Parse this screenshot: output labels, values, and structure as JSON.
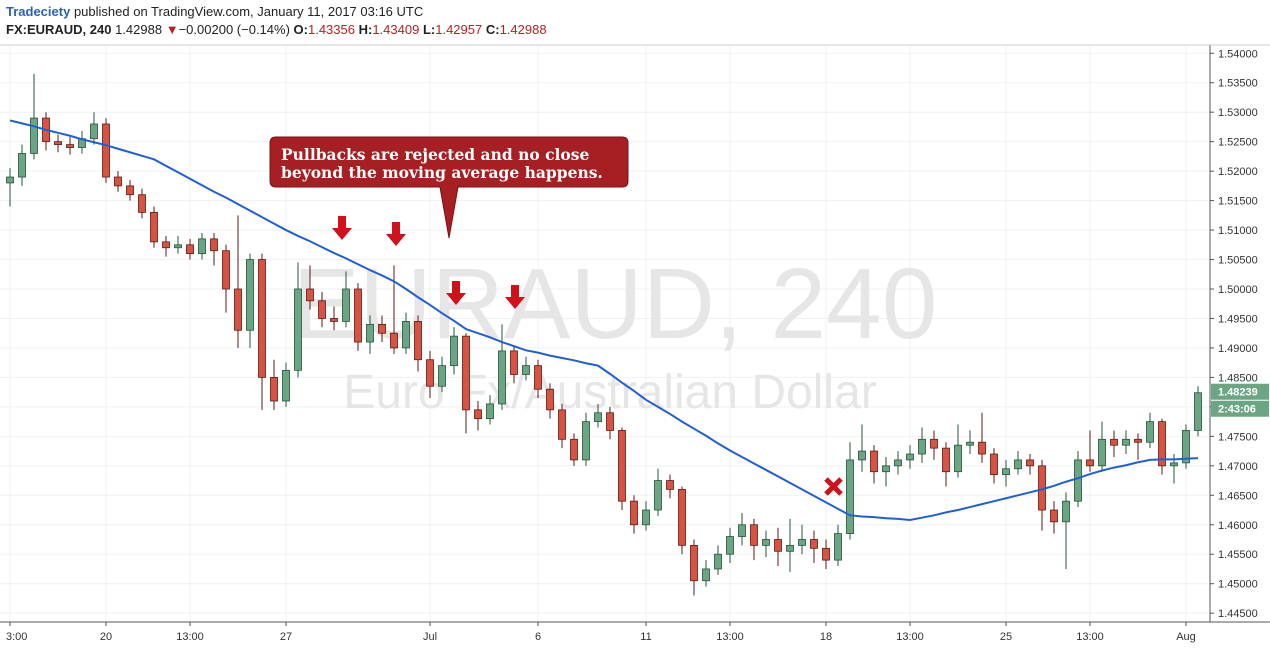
{
  "header": {
    "publisher": "Tradeciety",
    "published": "published on TradingView.com, January 11, 2017 03:16 UTC",
    "symbol": "FX:EURAUD, 240",
    "price": "1.42988",
    "change": "−0.00200 (−0.14%)",
    "open_label": "O:",
    "open": "1.43356",
    "high_label": "H:",
    "high": "1.43409",
    "low_label": "L:",
    "low": "1.42957",
    "close_label": "C:",
    "close": "1.42988"
  },
  "chart_data": {
    "type": "candlestick",
    "watermark": "EURAUD, 240",
    "watermark_subtitle": "Euro Fx/Australian Dollar",
    "annotation": [
      "Pullbacks are rejected and no close",
      "beyond the moving average happens."
    ],
    "last_price_label": "1.48239",
    "countdown": "2:43:06",
    "up_color": "#6ba583",
    "down_color": "#d75442",
    "categories": [
      "3:00",
      null,
      null,
      null,
      null,
      null,
      null,
      null,
      "20",
      null,
      null,
      null,
      null,
      null,
      null,
      "13:00",
      null,
      null,
      null,
      null,
      null,
      null,
      null,
      "27",
      null,
      null,
      null,
      null,
      null,
      null,
      null,
      null,
      null,
      null,
      null,
      "Jul",
      null,
      null,
      null,
      null,
      null,
      null,
      null,
      null,
      "6",
      null,
      null,
      null,
      null,
      null,
      null,
      null,
      null,
      "11",
      null,
      null,
      null,
      null,
      null,
      null,
      "13:00",
      null,
      null,
      null,
      null,
      null,
      null,
      null,
      "18",
      null,
      null,
      null,
      null,
      null,
      null,
      "13:00",
      null,
      null,
      null,
      null,
      null,
      null,
      null,
      "25",
      null,
      null,
      null,
      null,
      null,
      null,
      "13:00",
      null,
      null,
      null,
      null,
      null,
      null,
      null,
      "Aug",
      null
    ],
    "open": [
      1.518,
      1.519,
      1.523,
      1.529,
      1.525,
      1.5245,
      1.524,
      1.5255,
      1.528,
      1.519,
      1.5175,
      1.516,
      1.513,
      1.508,
      1.507,
      1.5075,
      1.506,
      1.5085,
      1.5065,
      1.5,
      1.493,
      1.505,
      1.485,
      1.481,
      1.4862,
      1.5,
      1.498,
      1.495,
      1.4945,
      1.5,
      1.491,
      1.494,
      1.4925,
      1.49,
      1.4945,
      1.488,
      1.4835,
      1.487,
      1.492,
      1.4795,
      1.478,
      1.4805,
      1.4895,
      1.4855,
      1.487,
      1.483,
      1.4795,
      1.4745,
      1.471,
      1.4775,
      1.479,
      1.476,
      1.464,
      1.46,
      1.4625,
      1.4675,
      1.466,
      1.4565,
      1.4505,
      1.4525,
      1.455,
      1.458,
      1.46,
      1.4565,
      1.4575,
      1.4555,
      1.4565,
      1.4575,
      1.456,
      1.454,
      1.4585,
      1.471,
      1.4725,
      1.469,
      1.47,
      1.471,
      1.472,
      1.4745,
      1.473,
      1.469,
      1.4735,
      1.474,
      1.472,
      1.4685,
      1.4695,
      1.471,
      1.47,
      1.4625,
      1.4605,
      1.464,
      1.471,
      1.47,
      1.4745,
      1.4735,
      1.4745,
      1.474,
      1.4775,
      1.47,
      1.4705,
      1.476
    ],
    "high": [
      1.5205,
      1.5245,
      1.5365,
      1.53,
      1.5262,
      1.5258,
      1.5268,
      1.53,
      1.529,
      1.52,
      1.5185,
      1.517,
      1.514,
      1.509,
      1.509,
      1.5085,
      1.5095,
      1.5095,
      1.5075,
      1.5125,
      1.506,
      1.506,
      1.488,
      1.4875,
      1.5045,
      1.504,
      1.4995,
      1.497,
      1.503,
      1.501,
      1.4955,
      1.4955,
      1.504,
      1.496,
      1.4955,
      1.4895,
      1.4885,
      1.4935,
      1.4925,
      1.481,
      1.482,
      1.494,
      1.4905,
      1.4885,
      1.488,
      1.484,
      1.4805,
      1.4755,
      1.479,
      1.4805,
      1.48,
      1.4765,
      1.465,
      1.464,
      1.4695,
      1.4685,
      1.4665,
      1.4575,
      1.454,
      1.4565,
      1.4595,
      1.462,
      1.461,
      1.459,
      1.4595,
      1.461,
      1.46,
      1.459,
      1.4575,
      1.46,
      1.474,
      1.477,
      1.4735,
      1.4715,
      1.4725,
      1.4735,
      1.4765,
      1.476,
      1.474,
      1.477,
      1.476,
      1.479,
      1.473,
      1.471,
      1.4725,
      1.472,
      1.471,
      1.464,
      1.4655,
      1.4725,
      1.476,
      1.4775,
      1.476,
      1.476,
      1.4755,
      1.479,
      1.478,
      1.472,
      1.477,
      1.4835
    ],
    "low": [
      1.514,
      1.5175,
      1.522,
      1.5235,
      1.5232,
      1.5228,
      1.523,
      1.5245,
      1.518,
      1.5165,
      1.515,
      1.512,
      1.507,
      1.5055,
      1.506,
      1.505,
      1.505,
      1.504,
      1.496,
      1.49,
      1.49,
      1.4795,
      1.4795,
      1.48,
      1.485,
      1.4965,
      1.4935,
      1.493,
      1.4935,
      1.4895,
      1.489,
      1.491,
      1.489,
      1.489,
      1.486,
      1.4815,
      1.4825,
      1.4855,
      1.4755,
      1.476,
      1.477,
      1.4795,
      1.484,
      1.4845,
      1.4815,
      1.478,
      1.473,
      1.47,
      1.47,
      1.4765,
      1.4745,
      1.4625,
      1.4585,
      1.459,
      1.4615,
      1.4645,
      1.455,
      1.448,
      1.4495,
      1.4515,
      1.4535,
      1.4565,
      1.454,
      1.4545,
      1.453,
      1.452,
      1.455,
      1.4535,
      1.4525,
      1.453,
      1.4575,
      1.469,
      1.467,
      1.4665,
      1.4685,
      1.4695,
      1.4705,
      1.471,
      1.4665,
      1.468,
      1.472,
      1.4705,
      1.467,
      1.4665,
      1.4685,
      1.4685,
      1.459,
      1.4585,
      1.4525,
      1.463,
      1.469,
      1.469,
      1.4715,
      1.472,
      1.471,
      1.473,
      1.4685,
      1.467,
      1.4695,
      1.475
    ],
    "close": [
      1.519,
      1.523,
      1.529,
      1.525,
      1.5245,
      1.524,
      1.5255,
      1.528,
      1.519,
      1.5175,
      1.516,
      1.513,
      1.508,
      1.507,
      1.5075,
      1.506,
      1.5085,
      1.5065,
      1.5,
      1.493,
      1.505,
      1.485,
      1.481,
      1.4862,
      1.5,
      1.498,
      1.495,
      1.4945,
      1.5,
      1.491,
      1.494,
      1.4925,
      1.49,
      1.4945,
      1.488,
      1.4835,
      1.487,
      1.492,
      1.4795,
      1.478,
      1.4805,
      1.4895,
      1.4855,
      1.487,
      1.483,
      1.4795,
      1.4745,
      1.471,
      1.4775,
      1.479,
      1.476,
      1.464,
      1.46,
      1.4625,
      1.4675,
      1.466,
      1.4565,
      1.4505,
      1.4525,
      1.455,
      1.458,
      1.46,
      1.4565,
      1.4575,
      1.4555,
      1.4565,
      1.4575,
      1.456,
      1.454,
      1.4585,
      1.471,
      1.4725,
      1.469,
      1.47,
      1.471,
      1.472,
      1.4745,
      1.473,
      1.469,
      1.4735,
      1.474,
      1.472,
      1.4685,
      1.4695,
      1.471,
      1.47,
      1.4625,
      1.4605,
      1.464,
      1.471,
      1.47,
      1.4745,
      1.4735,
      1.4745,
      1.474,
      1.4775,
      1.47,
      1.4705,
      1.476,
      1.4824
    ],
    "moving_average": {
      "color": "#1f5fd6",
      "values": [
        1.5286,
        1.5281,
        1.5276,
        1.527,
        1.5265,
        1.526,
        1.5254,
        1.5249,
        1.5244,
        1.5238,
        1.5232,
        1.5226,
        1.522,
        1.5209,
        1.5198,
        1.5187,
        1.5176,
        1.5165,
        1.5155,
        1.5144,
        1.5133,
        1.5122,
        1.5111,
        1.51,
        1.509,
        1.5081,
        1.5071,
        1.5061,
        1.5052,
        1.5042,
        1.5032,
        1.5023,
        1.5013,
        1.5,
        1.4986,
        1.4973,
        1.4959,
        1.4946,
        1.4932,
        1.4925,
        1.4918,
        1.491,
        1.4903,
        1.4896,
        1.4892,
        1.4887,
        1.4883,
        1.4879,
        1.4874,
        1.487,
        1.4856,
        1.4841,
        1.4827,
        1.4812,
        1.48,
        1.4788,
        1.4775,
        1.4763,
        1.4751,
        1.4738,
        1.4726,
        1.4715,
        1.4704,
        1.4693,
        1.4682,
        1.4671,
        1.466,
        1.4649,
        1.4638,
        1.4627,
        1.4616,
        1.4614,
        1.4613,
        1.4611,
        1.461,
        1.4608,
        1.4612,
        1.4616,
        1.4621,
        1.4625,
        1.463,
        1.4635,
        1.464,
        1.4645,
        1.465,
        1.4655,
        1.466,
        1.4666,
        1.4673,
        1.4679,
        1.4686,
        1.4692,
        1.4697,
        1.4701,
        1.4706,
        1.471,
        1.4711,
        1.4711,
        1.4712,
        1.4713
      ]
    },
    "ylim": [
      1.4435,
      1.5414
    ],
    "yticks": [
      {
        "value": 1.445,
        "label": "1.44500"
      },
      {
        "value": 1.45,
        "label": "1.45000"
      },
      {
        "value": 1.455,
        "label": "1.45500"
      },
      {
        "value": 1.46,
        "label": "1.46000"
      },
      {
        "value": 1.465,
        "label": "1.46500"
      },
      {
        "value": 1.47,
        "label": "1.47000"
      },
      {
        "value": 1.475,
        "label": "1.47500"
      },
      {
        "value": 1.48,
        "label": "1.48000"
      },
      {
        "value": 1.485,
        "label": "1.48500"
      },
      {
        "value": 1.49,
        "label": "1.49000"
      },
      {
        "value": 1.495,
        "label": "1.49500"
      },
      {
        "value": 1.5,
        "label": "1.50000"
      },
      {
        "value": 1.505,
        "label": "1.50500"
      },
      {
        "value": 1.51,
        "label": "1.51000"
      },
      {
        "value": 1.515,
        "label": "1.51500"
      },
      {
        "value": 1.52,
        "label": "1.52000"
      },
      {
        "value": 1.525,
        "label": "1.52500"
      },
      {
        "value": 1.53,
        "label": "1.53000"
      },
      {
        "value": 1.535,
        "label": "1.53500"
      },
      {
        "value": 1.54,
        "label": "1.54000"
      }
    ],
    "grid": true
  }
}
